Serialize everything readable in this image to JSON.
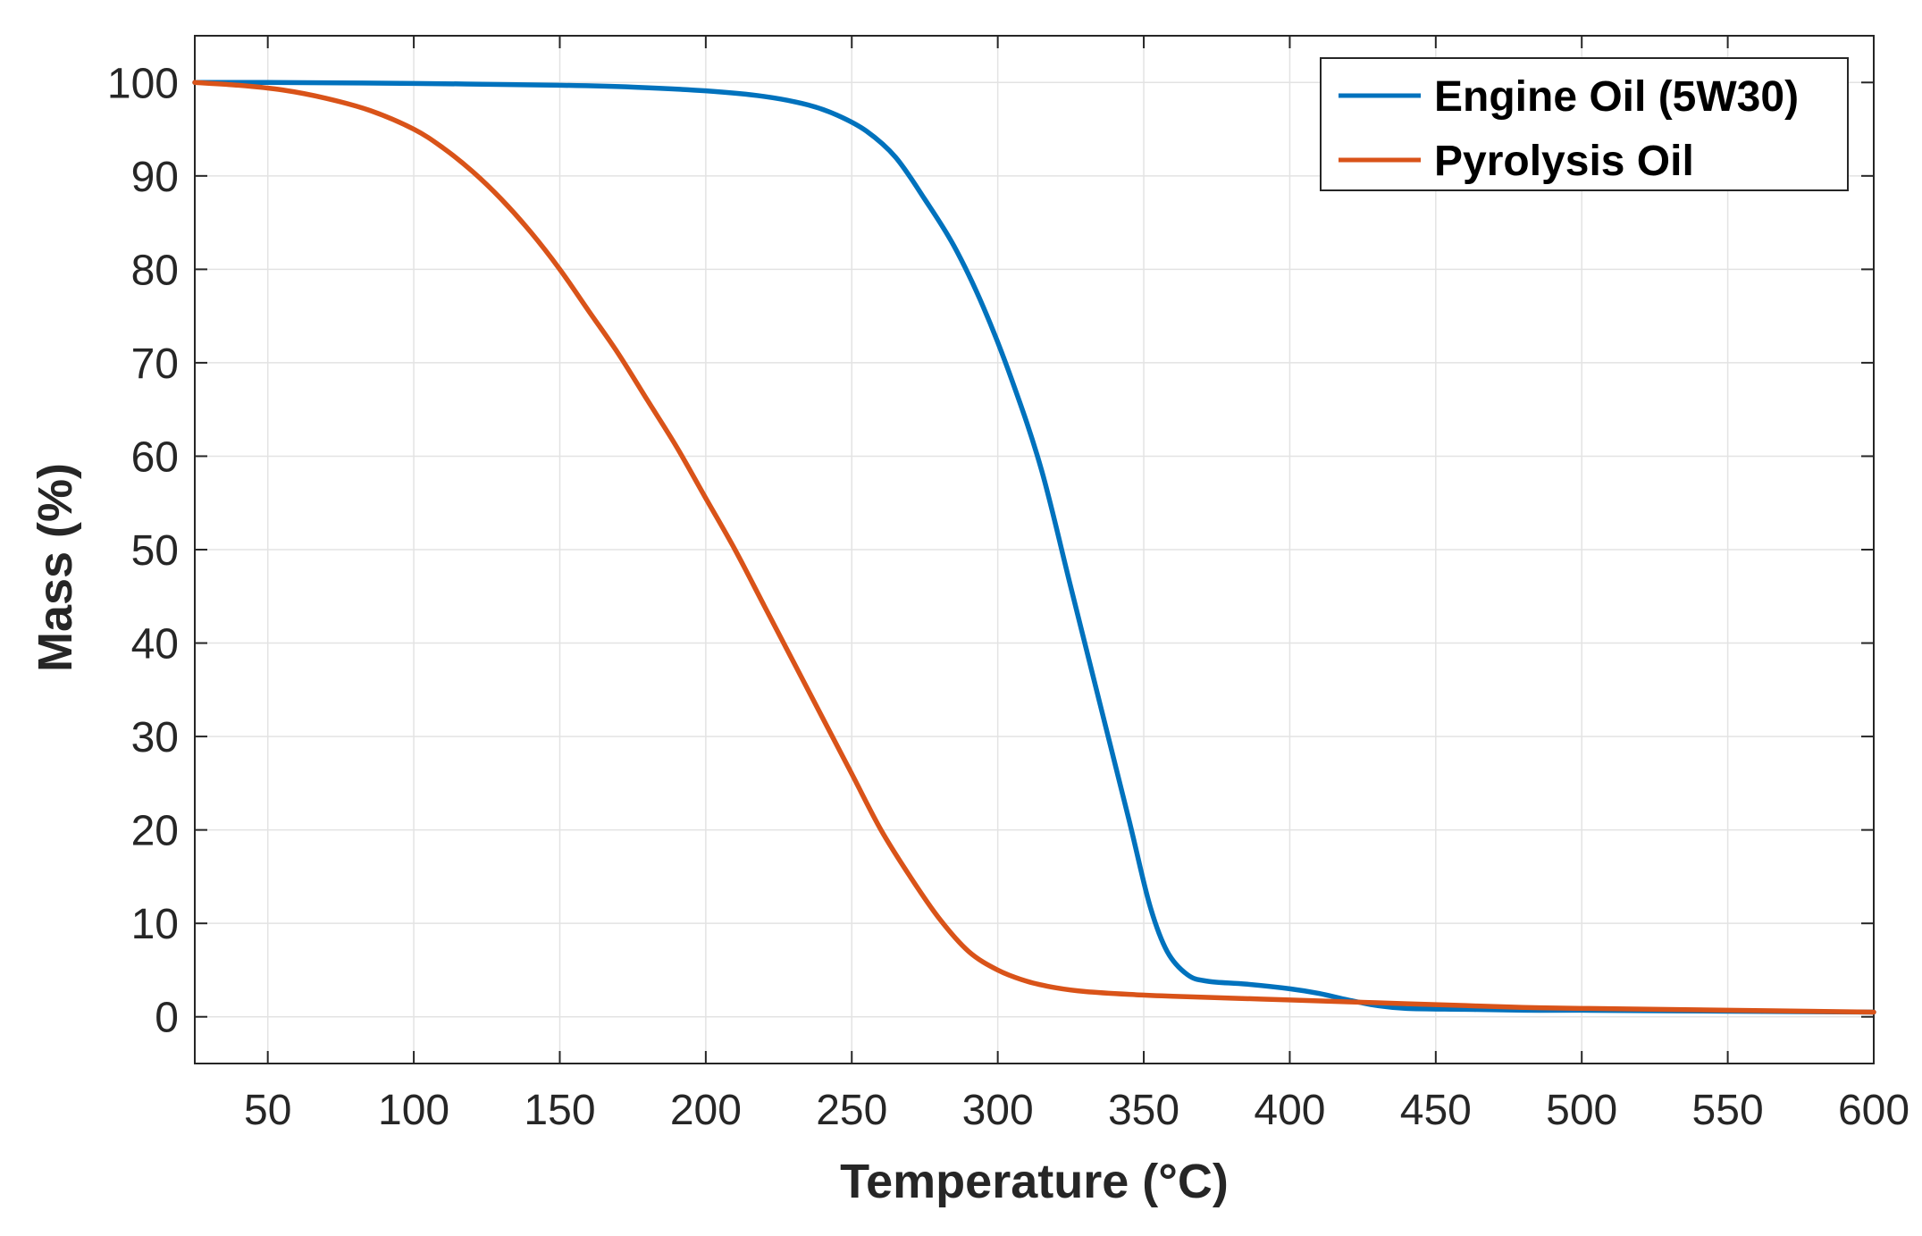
{
  "chart_data": {
    "type": "line",
    "title": "",
    "xlabel": "Temperature (°C)",
    "ylabel": "Mass (%)",
    "xlim": [
      25,
      600
    ],
    "ylim": [
      -5,
      105
    ],
    "x_ticks": [
      50,
      100,
      150,
      200,
      250,
      300,
      350,
      400,
      450,
      500,
      550,
      600
    ],
    "y_ticks": [
      0,
      10,
      20,
      30,
      40,
      50,
      60,
      70,
      80,
      90,
      100
    ],
    "grid": true,
    "legend_position": "top-right",
    "series": [
      {
        "name": "Engine Oil (5W30)",
        "color": "#0072BD",
        "points": [
          [
            25,
            100
          ],
          [
            50,
            100
          ],
          [
            100,
            99.9
          ],
          [
            150,
            99.7
          ],
          [
            175,
            99.5
          ],
          [
            200,
            99.1
          ],
          [
            220,
            98.5
          ],
          [
            235,
            97.6
          ],
          [
            245,
            96.5
          ],
          [
            255,
            94.8
          ],
          [
            265,
            92
          ],
          [
            275,
            87.5
          ],
          [
            285,
            82.5
          ],
          [
            295,
            76
          ],
          [
            305,
            68
          ],
          [
            315,
            58.5
          ],
          [
            325,
            46
          ],
          [
            335,
            33.5
          ],
          [
            345,
            21
          ],
          [
            352,
            12
          ],
          [
            358,
            7
          ],
          [
            365,
            4.5
          ],
          [
            372,
            3.8
          ],
          [
            385,
            3.5
          ],
          [
            400,
            3.0
          ],
          [
            410,
            2.5
          ],
          [
            420,
            1.8
          ],
          [
            430,
            1.2
          ],
          [
            440,
            0.9
          ],
          [
            460,
            0.8
          ],
          [
            480,
            0.7
          ],
          [
            500,
            0.7
          ],
          [
            550,
            0.6
          ],
          [
            600,
            0.5
          ]
        ]
      },
      {
        "name": "Pyrolysis Oil",
        "color": "#D95319",
        "points": [
          [
            25,
            100
          ],
          [
            40,
            99.7
          ],
          [
            55,
            99.2
          ],
          [
            70,
            98.3
          ],
          [
            85,
            97
          ],
          [
            100,
            95
          ],
          [
            110,
            93
          ],
          [
            120,
            90.5
          ],
          [
            130,
            87.5
          ],
          [
            140,
            84
          ],
          [
            150,
            80
          ],
          [
            160,
            75.5
          ],
          [
            170,
            71
          ],
          [
            180,
            66
          ],
          [
            190,
            61
          ],
          [
            200,
            55.5
          ],
          [
            210,
            50
          ],
          [
            220,
            44
          ],
          [
            230,
            38
          ],
          [
            240,
            32
          ],
          [
            250,
            26
          ],
          [
            260,
            20
          ],
          [
            270,
            15
          ],
          [
            280,
            10.5
          ],
          [
            290,
            7
          ],
          [
            300,
            5
          ],
          [
            310,
            3.8
          ],
          [
            320,
            3.1
          ],
          [
            330,
            2.7
          ],
          [
            345,
            2.4
          ],
          [
            360,
            2.2
          ],
          [
            380,
            2.0
          ],
          [
            400,
            1.8
          ],
          [
            420,
            1.6
          ],
          [
            440,
            1.4
          ],
          [
            460,
            1.2
          ],
          [
            480,
            1.0
          ],
          [
            500,
            0.9
          ],
          [
            550,
            0.7
          ],
          [
            600,
            0.5
          ]
        ]
      }
    ]
  }
}
